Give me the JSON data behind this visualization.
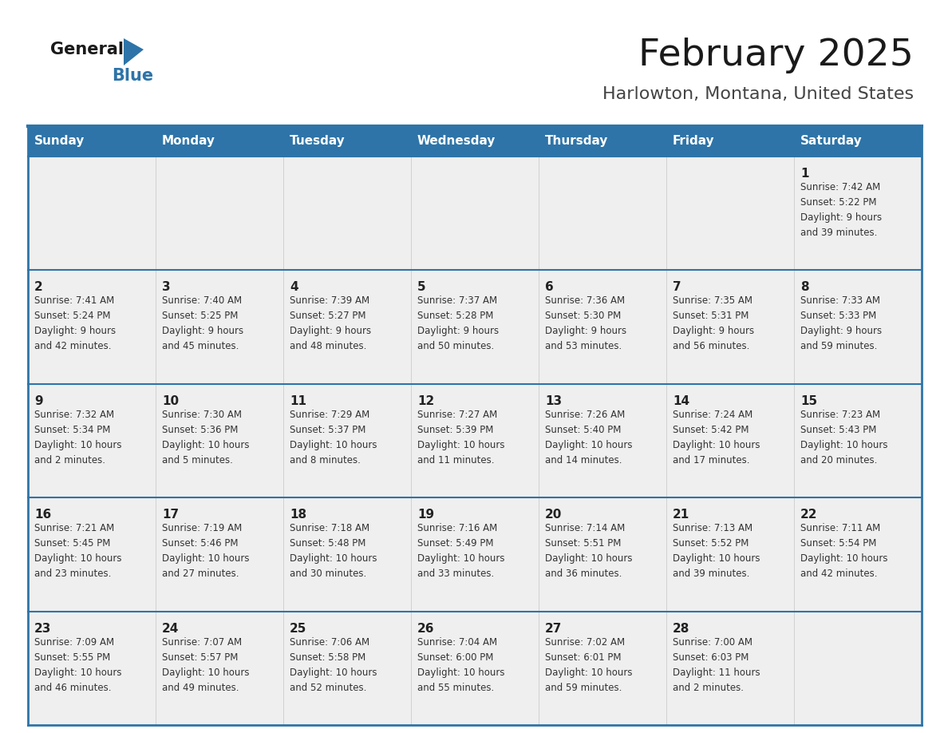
{
  "title": "February 2025",
  "subtitle": "Harlowton, Montana, United States",
  "days_of_week": [
    "Sunday",
    "Monday",
    "Tuesday",
    "Wednesday",
    "Thursday",
    "Friday",
    "Saturday"
  ],
  "header_bg": "#2E74A8",
  "header_text": "#FFFFFF",
  "cell_bg": "#EFEFEF",
  "divider_color": "#2E74A8",
  "text_color": "#333333",
  "day_num_color": "#222222",
  "title_color": "#1a1a1a",
  "subtitle_color": "#444444",
  "logo_general_color": "#1a1a1a",
  "logo_blue_color": "#2E74A8",
  "calendar_data": [
    [
      {
        "day": null,
        "info": null
      },
      {
        "day": null,
        "info": null
      },
      {
        "day": null,
        "info": null
      },
      {
        "day": null,
        "info": null
      },
      {
        "day": null,
        "info": null
      },
      {
        "day": null,
        "info": null
      },
      {
        "day": 1,
        "info": "Sunrise: 7:42 AM\nSunset: 5:22 PM\nDaylight: 9 hours\nand 39 minutes."
      }
    ],
    [
      {
        "day": 2,
        "info": "Sunrise: 7:41 AM\nSunset: 5:24 PM\nDaylight: 9 hours\nand 42 minutes."
      },
      {
        "day": 3,
        "info": "Sunrise: 7:40 AM\nSunset: 5:25 PM\nDaylight: 9 hours\nand 45 minutes."
      },
      {
        "day": 4,
        "info": "Sunrise: 7:39 AM\nSunset: 5:27 PM\nDaylight: 9 hours\nand 48 minutes."
      },
      {
        "day": 5,
        "info": "Sunrise: 7:37 AM\nSunset: 5:28 PM\nDaylight: 9 hours\nand 50 minutes."
      },
      {
        "day": 6,
        "info": "Sunrise: 7:36 AM\nSunset: 5:30 PM\nDaylight: 9 hours\nand 53 minutes."
      },
      {
        "day": 7,
        "info": "Sunrise: 7:35 AM\nSunset: 5:31 PM\nDaylight: 9 hours\nand 56 minutes."
      },
      {
        "day": 8,
        "info": "Sunrise: 7:33 AM\nSunset: 5:33 PM\nDaylight: 9 hours\nand 59 minutes."
      }
    ],
    [
      {
        "day": 9,
        "info": "Sunrise: 7:32 AM\nSunset: 5:34 PM\nDaylight: 10 hours\nand 2 minutes."
      },
      {
        "day": 10,
        "info": "Sunrise: 7:30 AM\nSunset: 5:36 PM\nDaylight: 10 hours\nand 5 minutes."
      },
      {
        "day": 11,
        "info": "Sunrise: 7:29 AM\nSunset: 5:37 PM\nDaylight: 10 hours\nand 8 minutes."
      },
      {
        "day": 12,
        "info": "Sunrise: 7:27 AM\nSunset: 5:39 PM\nDaylight: 10 hours\nand 11 minutes."
      },
      {
        "day": 13,
        "info": "Sunrise: 7:26 AM\nSunset: 5:40 PM\nDaylight: 10 hours\nand 14 minutes."
      },
      {
        "day": 14,
        "info": "Sunrise: 7:24 AM\nSunset: 5:42 PM\nDaylight: 10 hours\nand 17 minutes."
      },
      {
        "day": 15,
        "info": "Sunrise: 7:23 AM\nSunset: 5:43 PM\nDaylight: 10 hours\nand 20 minutes."
      }
    ],
    [
      {
        "day": 16,
        "info": "Sunrise: 7:21 AM\nSunset: 5:45 PM\nDaylight: 10 hours\nand 23 minutes."
      },
      {
        "day": 17,
        "info": "Sunrise: 7:19 AM\nSunset: 5:46 PM\nDaylight: 10 hours\nand 27 minutes."
      },
      {
        "day": 18,
        "info": "Sunrise: 7:18 AM\nSunset: 5:48 PM\nDaylight: 10 hours\nand 30 minutes."
      },
      {
        "day": 19,
        "info": "Sunrise: 7:16 AM\nSunset: 5:49 PM\nDaylight: 10 hours\nand 33 minutes."
      },
      {
        "day": 20,
        "info": "Sunrise: 7:14 AM\nSunset: 5:51 PM\nDaylight: 10 hours\nand 36 minutes."
      },
      {
        "day": 21,
        "info": "Sunrise: 7:13 AM\nSunset: 5:52 PM\nDaylight: 10 hours\nand 39 minutes."
      },
      {
        "day": 22,
        "info": "Sunrise: 7:11 AM\nSunset: 5:54 PM\nDaylight: 10 hours\nand 42 minutes."
      }
    ],
    [
      {
        "day": 23,
        "info": "Sunrise: 7:09 AM\nSunset: 5:55 PM\nDaylight: 10 hours\nand 46 minutes."
      },
      {
        "day": 24,
        "info": "Sunrise: 7:07 AM\nSunset: 5:57 PM\nDaylight: 10 hours\nand 49 minutes."
      },
      {
        "day": 25,
        "info": "Sunrise: 7:06 AM\nSunset: 5:58 PM\nDaylight: 10 hours\nand 52 minutes."
      },
      {
        "day": 26,
        "info": "Sunrise: 7:04 AM\nSunset: 6:00 PM\nDaylight: 10 hours\nand 55 minutes."
      },
      {
        "day": 27,
        "info": "Sunrise: 7:02 AM\nSunset: 6:01 PM\nDaylight: 10 hours\nand 59 minutes."
      },
      {
        "day": 28,
        "info": "Sunrise: 7:00 AM\nSunset: 6:03 PM\nDaylight: 11 hours\nand 2 minutes."
      },
      {
        "day": null,
        "info": null
      }
    ]
  ]
}
